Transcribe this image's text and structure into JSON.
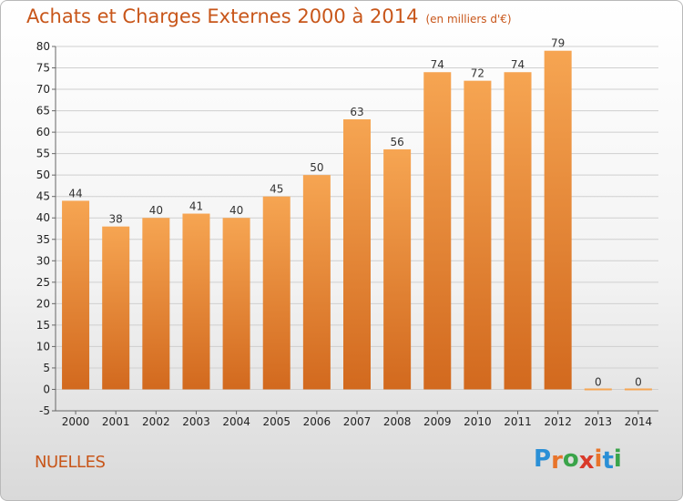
{
  "header": {
    "title": "Achats et Charges Externes 2000 à 2014",
    "subtitle": "(en milliers d'€)"
  },
  "footer": {
    "commune": "NUELLES",
    "logo_letters": [
      "P",
      "r",
      "o",
      "x",
      "i",
      "t",
      "i"
    ]
  },
  "colors": {
    "title": "#c8561a",
    "bar_top": "#f6a552",
    "bar_bottom": "#d2691e",
    "grid": "#cfcfcf",
    "logo": [
      "#2a8fd6",
      "#e8742a",
      "#3aa44a",
      "#d93a2a",
      "#e8742a",
      "#2a8fd6",
      "#3aa44a"
    ]
  },
  "chart_data": {
    "type": "bar",
    "title": "Achats et Charges Externes 2000 à 2014",
    "categories": [
      "2000",
      "2001",
      "2002",
      "2003",
      "2004",
      "2005",
      "2006",
      "2007",
      "2008",
      "2009",
      "2010",
      "2011",
      "2012",
      "2013",
      "2014"
    ],
    "values": [
      44,
      38,
      40,
      41,
      40,
      45,
      50,
      63,
      56,
      74,
      72,
      74,
      79,
      0,
      0
    ],
    "ylim": [
      -5,
      80
    ],
    "yticks": [
      -5,
      0,
      5,
      10,
      15,
      20,
      25,
      30,
      35,
      40,
      45,
      50,
      55,
      60,
      65,
      70,
      75,
      80
    ],
    "grid": true,
    "xlabel": "",
    "ylabel": ""
  }
}
